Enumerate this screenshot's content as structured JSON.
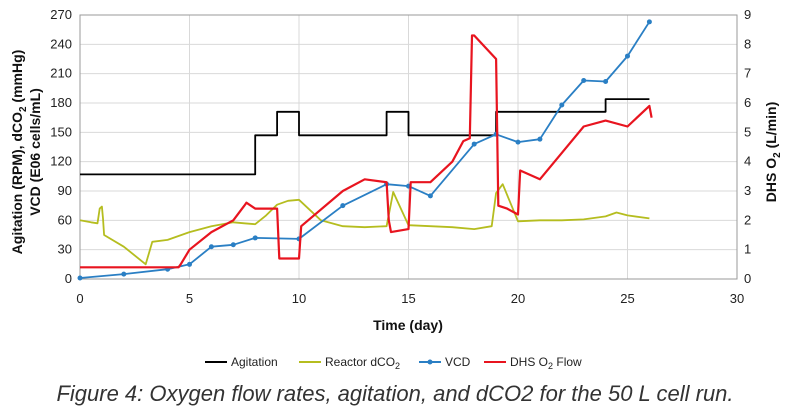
{
  "chart_data": {
    "type": "line",
    "xlabel": "Time (day)",
    "ylabel_left": "Agitation (RPM), dCO2 (mmHg) VCD (E06 cells/mL)",
    "ylabel_left_lines": [
      "Agitation (RPM), dCO",
      "2",
      " (mmHg)",
      "VCD (E06 cells/mL)"
    ],
    "ylabel_right": "DHS O2 (L/min)",
    "ylabel_right_parts": [
      "DHS O",
      "2",
      " (L/min)"
    ],
    "xlim": [
      0,
      30
    ],
    "ylim_left": [
      0,
      270
    ],
    "ylim_right": [
      0,
      9
    ],
    "x_ticks": [
      0,
      5,
      10,
      15,
      20,
      25,
      30
    ],
    "y_ticks_left": [
      0,
      30,
      60,
      90,
      120,
      150,
      180,
      210,
      240,
      270
    ],
    "y_ticks_right": [
      0,
      1,
      2,
      3,
      4,
      5,
      6,
      7,
      8,
      9
    ],
    "grid": true,
    "legend_position": "bottom",
    "series": [
      {
        "name": "Agitation",
        "color": "#000000",
        "axis": "left",
        "step": true,
        "x": [
          0,
          8,
          8,
          9,
          9,
          10,
          10,
          14,
          14,
          15,
          15,
          19,
          19,
          24,
          24,
          26
        ],
        "y": [
          107,
          107,
          147,
          147,
          171,
          171,
          147,
          147,
          171,
          171,
          147,
          147,
          171,
          171,
          184,
          184
        ]
      },
      {
        "name": "Reactor dCO2",
        "legend_parts": [
          "Reactor dCO",
          "2"
        ],
        "color": "#b5bd1f",
        "axis": "left",
        "x": [
          0,
          0.5,
          0.8,
          0.9,
          1,
          1.05,
          1.1,
          2,
          3,
          3.3,
          4,
          5,
          6,
          7,
          7.5,
          8,
          8.5,
          9,
          9.5,
          10,
          11,
          12,
          13,
          14,
          14.3,
          15,
          16,
          17,
          18,
          18.8,
          19,
          19.3,
          20,
          21,
          22,
          23,
          24,
          24.5,
          25,
          26
        ],
        "y": [
          60,
          58,
          57,
          72,
          74,
          62,
          45,
          33,
          15,
          38,
          40,
          48,
          54,
          58,
          57,
          56,
          65,
          76,
          80,
          81,
          60,
          54,
          53,
          54,
          89,
          55,
          54,
          53,
          51,
          54,
          88,
          97,
          59,
          60,
          60,
          61,
          64,
          68,
          65,
          62
        ]
      },
      {
        "name": "VCD",
        "color": "#2a7fc4",
        "axis": "left",
        "markers": true,
        "x": [
          0,
          2,
          4,
          5,
          6,
          7,
          8,
          10,
          12,
          14,
          15,
          16,
          18,
          19,
          20,
          21,
          22,
          23,
          24,
          25,
          26
        ],
        "y": [
          1,
          5,
          10,
          15,
          33,
          35,
          42,
          41,
          75,
          97,
          95,
          85,
          138,
          148,
          140,
          143,
          178,
          203,
          202,
          228,
          263
        ]
      },
      {
        "name": "DHS O2 Flow",
        "legend_parts": [
          "DHS O",
          "2",
          " Flow"
        ],
        "color": "#e8141f",
        "axis": "right",
        "x": [
          0,
          4.5,
          4.6,
          5,
          6,
          7,
          7.5,
          7.6,
          8,
          9,
          9.1,
          10,
          10.1,
          12,
          13,
          14,
          14.1,
          14.2,
          15,
          15.1,
          16,
          17,
          17.5,
          17.8,
          17.9,
          18,
          19,
          19.1,
          19.5,
          20,
          20.1,
          21,
          22,
          23,
          24,
          25,
          26,
          26.1
        ],
        "y": [
          0.4,
          0.4,
          0.5,
          1.0,
          1.6,
          2.0,
          2.5,
          2.6,
          2.4,
          2.4,
          0.7,
          0.7,
          1.8,
          3.0,
          3.4,
          3.3,
          2.0,
          1.6,
          1.7,
          3.3,
          3.3,
          4.0,
          4.7,
          4.8,
          8.3,
          8.3,
          7.5,
          2.5,
          2.4,
          2.2,
          3.7,
          3.4,
          4.3,
          5.2,
          5.4,
          5.2,
          5.9,
          5.5
        ]
      }
    ]
  },
  "legend": {
    "agitation": "Agitation",
    "dco2_prefix": "Reactor dCO",
    "dco2_sub": "2",
    "vcd": "VCD",
    "o2_prefix": "DHS O",
    "o2_sub": "2",
    "o2_suffix": " Flow"
  },
  "caption": "Figure 4: Oxygen flow rates, agitation, and dCO2 for the 50 L cell run."
}
